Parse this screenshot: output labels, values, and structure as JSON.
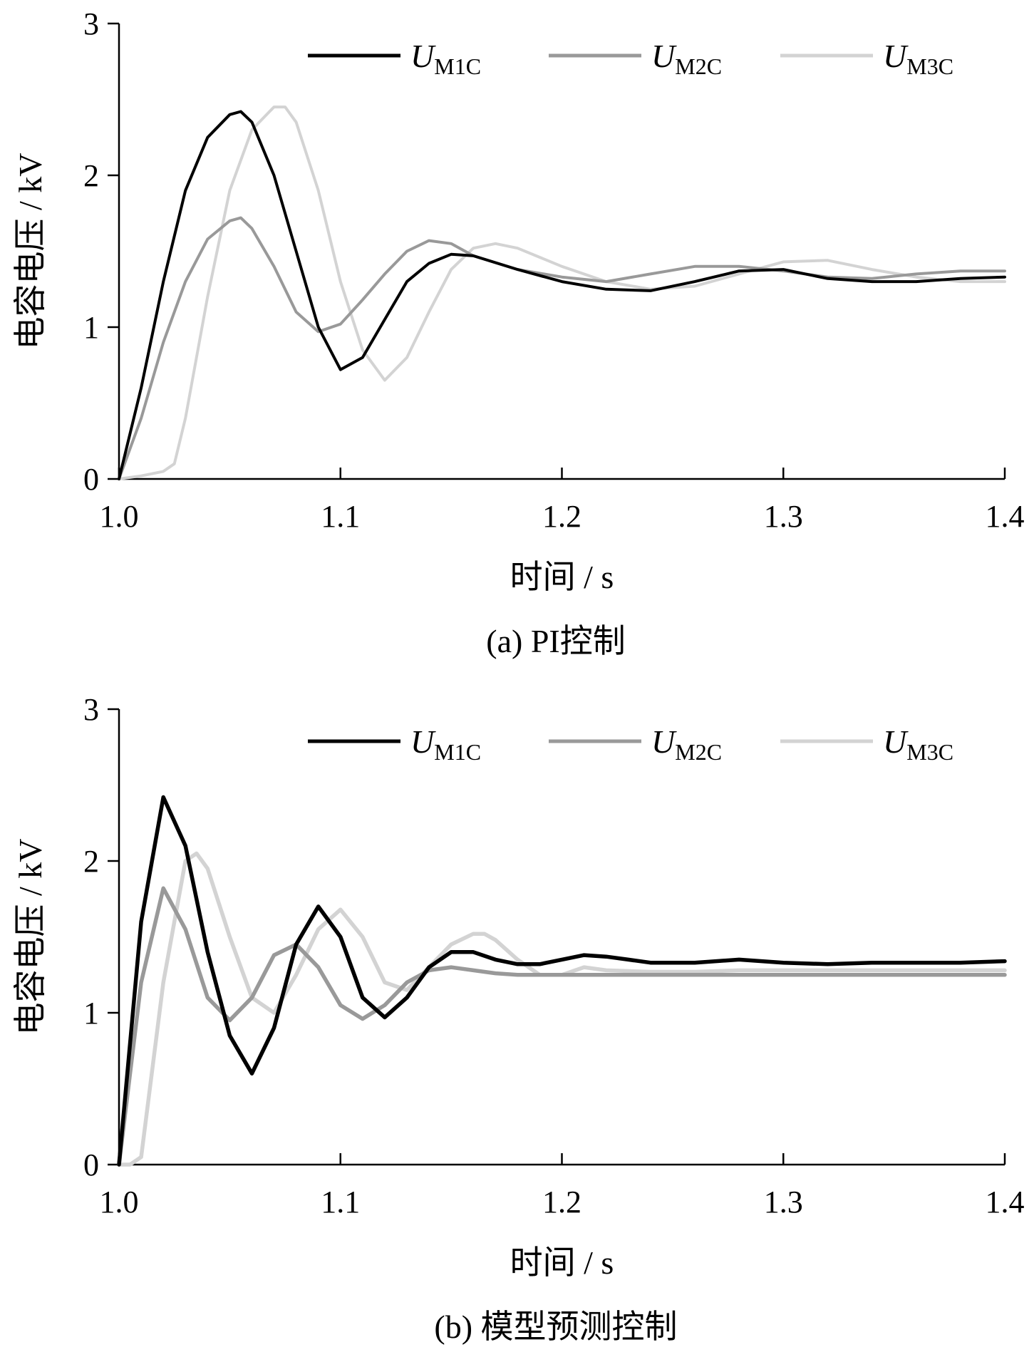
{
  "chart_data": [
    {
      "type": "line",
      "caption": "(a)  PI控制",
      "xlabel": "时间 / s",
      "ylabel": "电容电压 / kV",
      "xlim": [
        1.0,
        1.4
      ],
      "ylim": [
        0,
        3
      ],
      "xticks": [
        "1.0",
        "1.1",
        "1.2",
        "1.3",
        "1.4"
      ],
      "yticks": [
        "0",
        "1",
        "2",
        "3"
      ],
      "legend_position": "top",
      "series": [
        {
          "name": "U",
          "sub": "M1C",
          "color": "#000000",
          "x": [
            1.0,
            1.01,
            1.02,
            1.03,
            1.04,
            1.05,
            1.055,
            1.06,
            1.07,
            1.08,
            1.09,
            1.1,
            1.11,
            1.12,
            1.13,
            1.14,
            1.15,
            1.16,
            1.18,
            1.2,
            1.22,
            1.24,
            1.26,
            1.28,
            1.3,
            1.32,
            1.34,
            1.36,
            1.38,
            1.4
          ],
          "y": [
            0.0,
            0.6,
            1.3,
            1.9,
            2.25,
            2.4,
            2.42,
            2.35,
            2.0,
            1.5,
            1.0,
            0.72,
            0.8,
            1.05,
            1.3,
            1.42,
            1.48,
            1.47,
            1.38,
            1.3,
            1.25,
            1.24,
            1.3,
            1.37,
            1.38,
            1.32,
            1.3,
            1.3,
            1.32,
            1.33
          ]
        },
        {
          "name": "U",
          "sub": "M2C",
          "color": "#999999",
          "x": [
            1.0,
            1.01,
            1.02,
            1.03,
            1.04,
            1.05,
            1.055,
            1.06,
            1.07,
            1.08,
            1.09,
            1.1,
            1.11,
            1.12,
            1.13,
            1.14,
            1.15,
            1.16,
            1.18,
            1.2,
            1.22,
            1.24,
            1.26,
            1.28,
            1.3,
            1.32,
            1.34,
            1.36,
            1.38,
            1.4
          ],
          "y": [
            0.0,
            0.4,
            0.9,
            1.3,
            1.58,
            1.7,
            1.72,
            1.65,
            1.4,
            1.1,
            0.97,
            1.02,
            1.18,
            1.35,
            1.5,
            1.57,
            1.55,
            1.47,
            1.38,
            1.33,
            1.3,
            1.35,
            1.4,
            1.4,
            1.37,
            1.33,
            1.32,
            1.35,
            1.37,
            1.37
          ]
        },
        {
          "name": "U",
          "sub": "M3C",
          "color": "#d3d3d3",
          "x": [
            1.0,
            1.01,
            1.02,
            1.025,
            1.03,
            1.04,
            1.05,
            1.06,
            1.07,
            1.075,
            1.08,
            1.09,
            1.1,
            1.11,
            1.12,
            1.13,
            1.14,
            1.15,
            1.16,
            1.17,
            1.18,
            1.2,
            1.22,
            1.24,
            1.26,
            1.28,
            1.3,
            1.32,
            1.34,
            1.36,
            1.38,
            1.4
          ],
          "y": [
            0.0,
            0.02,
            0.05,
            0.1,
            0.4,
            1.2,
            1.9,
            2.3,
            2.45,
            2.45,
            2.35,
            1.9,
            1.3,
            0.85,
            0.65,
            0.8,
            1.1,
            1.38,
            1.52,
            1.55,
            1.52,
            1.4,
            1.3,
            1.25,
            1.27,
            1.35,
            1.43,
            1.44,
            1.38,
            1.33,
            1.3,
            1.3
          ]
        }
      ]
    },
    {
      "type": "line",
      "caption": "(b)  模型预测控制",
      "xlabel": "时间 / s",
      "ylabel": "电容电压 / kV",
      "xlim": [
        1.0,
        1.4
      ],
      "ylim": [
        0,
        3
      ],
      "xticks": [
        "1.0",
        "1.1",
        "1.2",
        "1.3",
        "1.4"
      ],
      "yticks": [
        "0",
        "1",
        "2",
        "3"
      ],
      "legend_position": "top",
      "series": [
        {
          "name": "U",
          "sub": "M1C",
          "color": "#000000",
          "x": [
            1.0,
            1.01,
            1.02,
            1.03,
            1.04,
            1.05,
            1.06,
            1.07,
            1.08,
            1.09,
            1.1,
            1.11,
            1.12,
            1.13,
            1.14,
            1.15,
            1.16,
            1.17,
            1.18,
            1.19,
            1.2,
            1.21,
            1.22,
            1.23,
            1.24,
            1.26,
            1.28,
            1.3,
            1.32,
            1.34,
            1.36,
            1.38,
            1.4
          ],
          "y": [
            0.0,
            1.6,
            2.42,
            2.1,
            1.4,
            0.85,
            0.6,
            0.9,
            1.45,
            1.7,
            1.5,
            1.1,
            0.97,
            1.1,
            1.3,
            1.4,
            1.4,
            1.35,
            1.32,
            1.32,
            1.35,
            1.38,
            1.37,
            1.35,
            1.33,
            1.33,
            1.35,
            1.33,
            1.32,
            1.33,
            1.33,
            1.33,
            1.34
          ]
        },
        {
          "name": "U",
          "sub": "M2C",
          "color": "#999999",
          "x": [
            1.0,
            1.01,
            1.02,
            1.03,
            1.04,
            1.05,
            1.06,
            1.07,
            1.08,
            1.09,
            1.1,
            1.11,
            1.12,
            1.13,
            1.14,
            1.15,
            1.16,
            1.17,
            1.18,
            1.2,
            1.22,
            1.25,
            1.3,
            1.35,
            1.4
          ],
          "y": [
            0.0,
            1.2,
            1.82,
            1.55,
            1.1,
            0.95,
            1.1,
            1.38,
            1.45,
            1.3,
            1.05,
            0.96,
            1.05,
            1.2,
            1.28,
            1.3,
            1.28,
            1.26,
            1.25,
            1.25,
            1.25,
            1.25,
            1.25,
            1.25,
            1.25
          ]
        },
        {
          "name": "U",
          "sub": "M3C",
          "color": "#d3d3d3",
          "x": [
            1.0,
            1.005,
            1.01,
            1.02,
            1.03,
            1.035,
            1.04,
            1.05,
            1.06,
            1.07,
            1.08,
            1.09,
            1.1,
            1.11,
            1.12,
            1.13,
            1.14,
            1.15,
            1.16,
            1.165,
            1.17,
            1.18,
            1.19,
            1.2,
            1.21,
            1.22,
            1.24,
            1.26,
            1.28,
            1.3,
            1.35,
            1.4
          ],
          "y": [
            0.0,
            0.0,
            0.05,
            1.2,
            2.0,
            2.05,
            1.95,
            1.5,
            1.1,
            1.0,
            1.25,
            1.55,
            1.68,
            1.5,
            1.2,
            1.15,
            1.3,
            1.45,
            1.52,
            1.52,
            1.48,
            1.35,
            1.25,
            1.25,
            1.3,
            1.28,
            1.27,
            1.27,
            1.28,
            1.28,
            1.28,
            1.28
          ]
        }
      ]
    }
  ]
}
